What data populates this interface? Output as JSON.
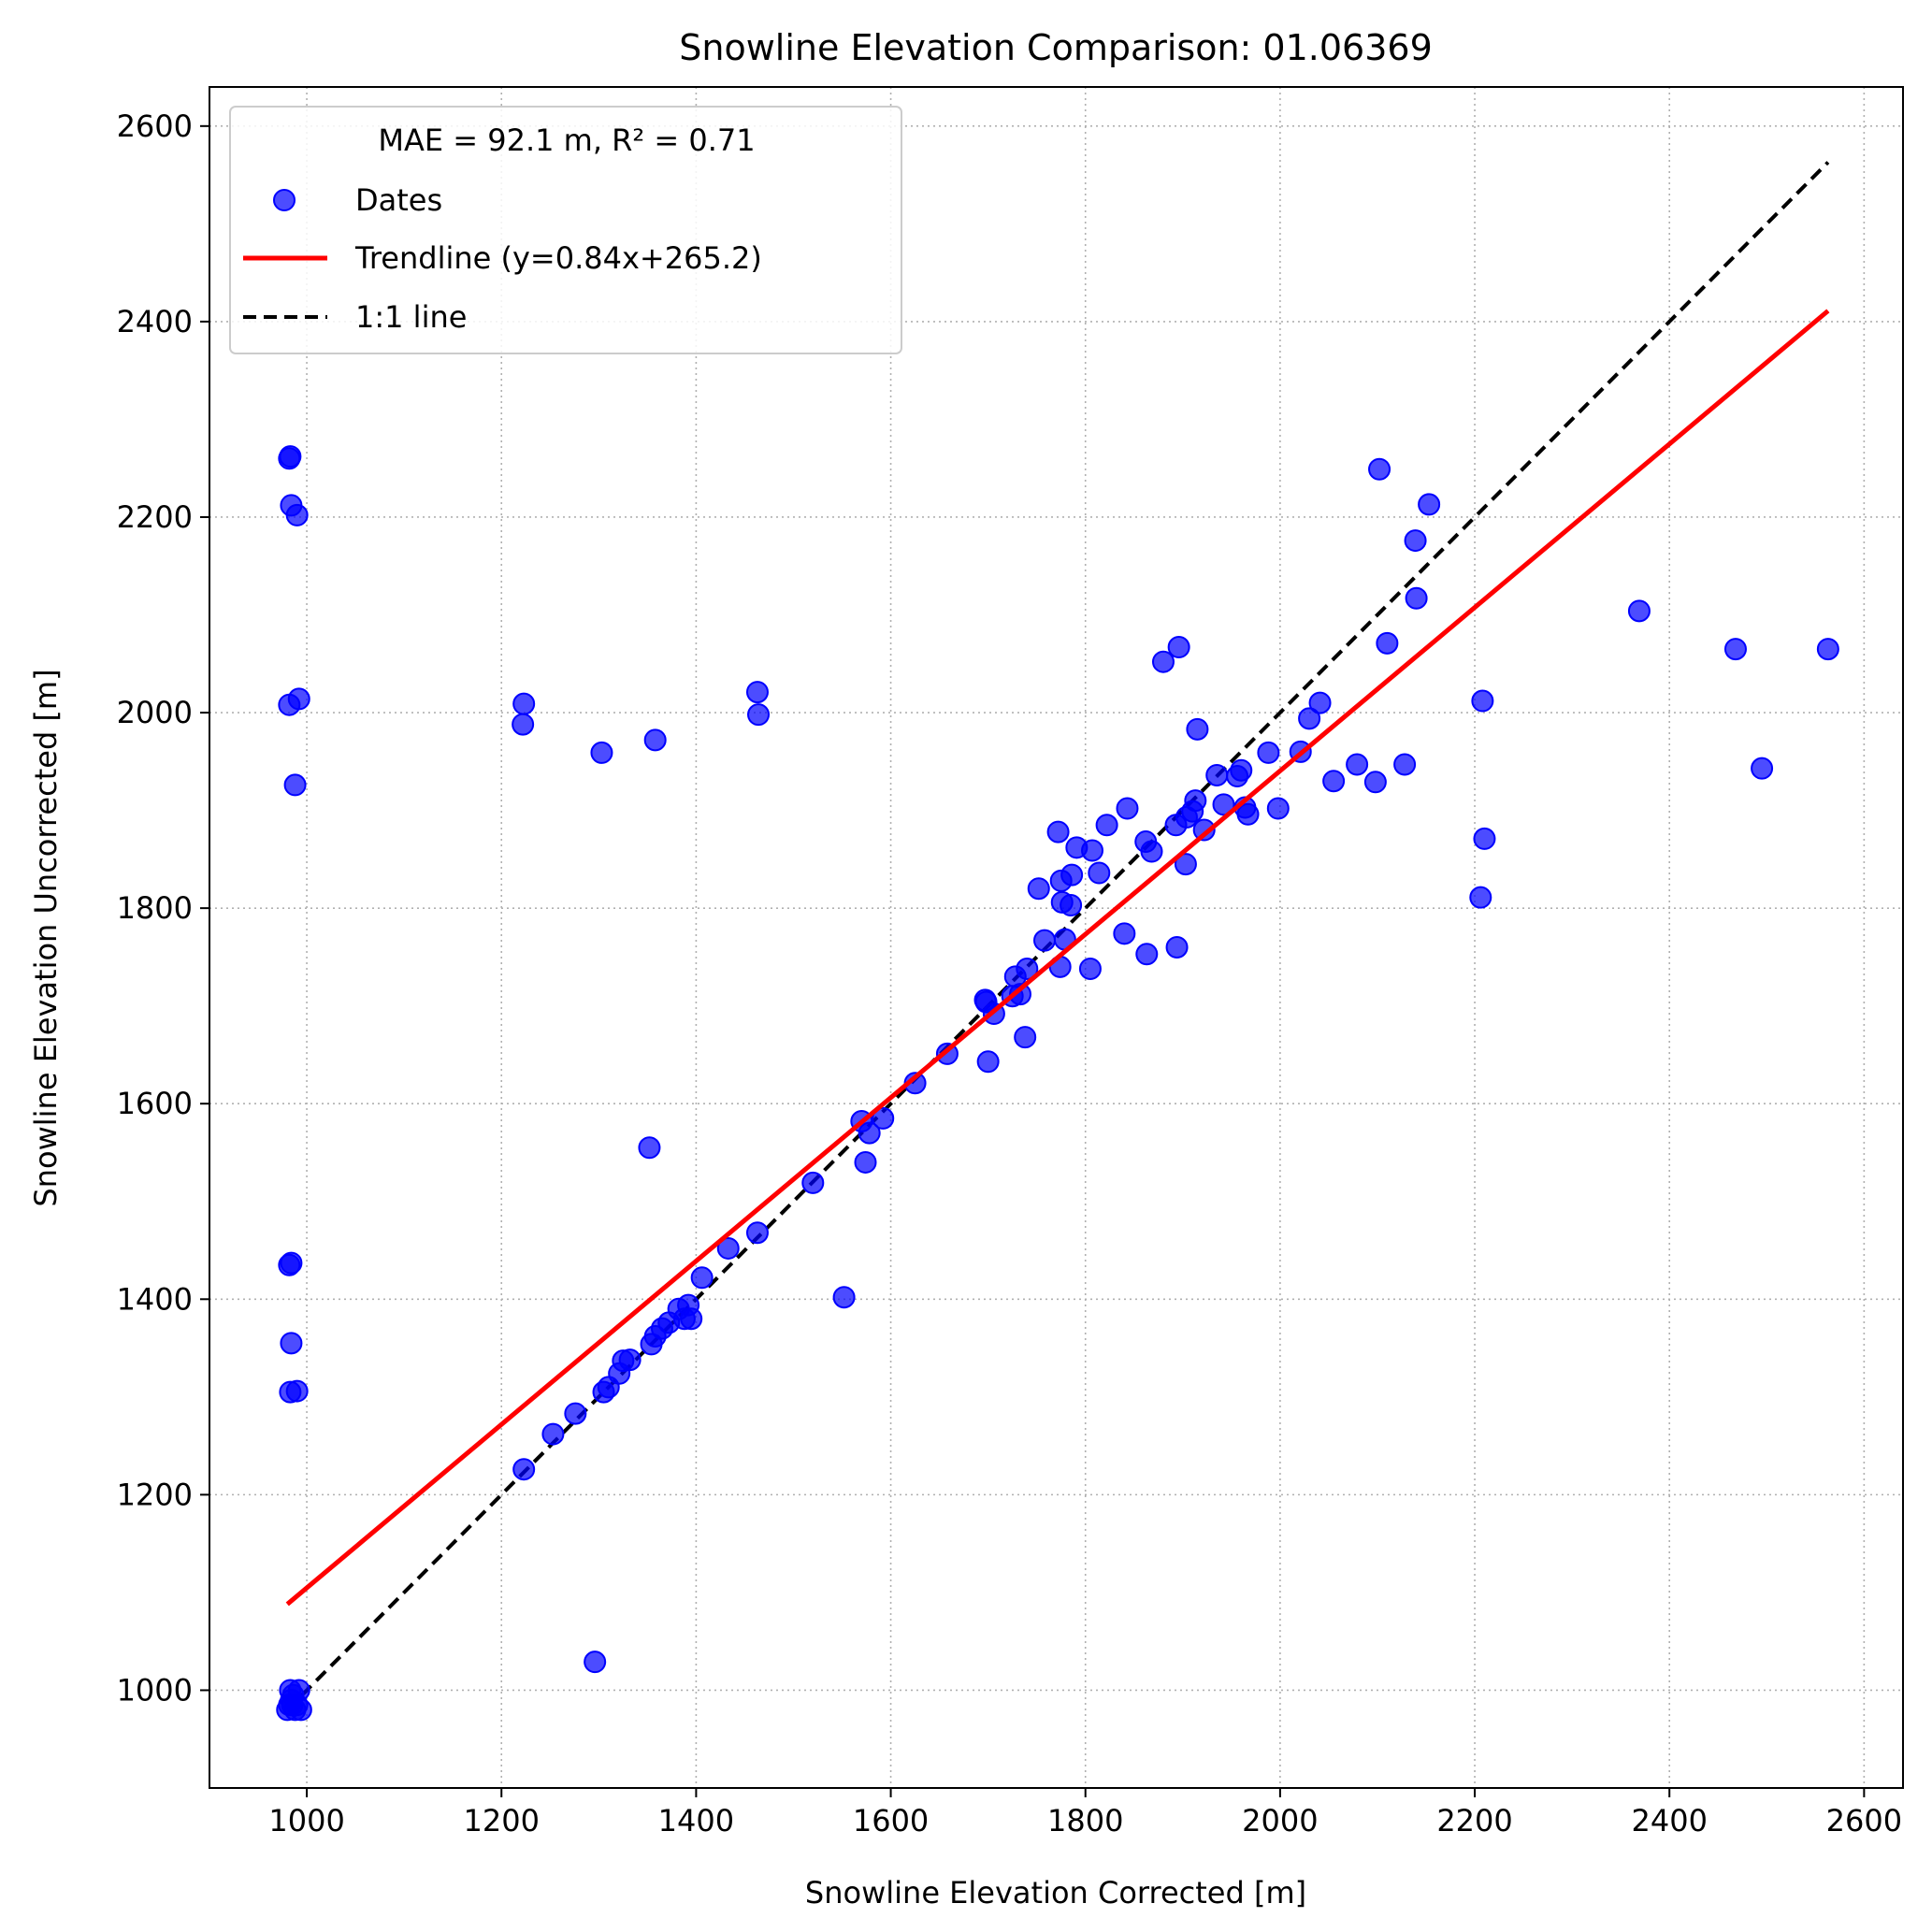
{
  "chart_data": {
    "type": "scatter",
    "title": "Snowline Elevation Comparison: 01.06369",
    "xlabel": "Snowline Elevation Corrected [m]",
    "ylabel": "Snowline Elevation Uncorrected [m]",
    "xlim": [
      900,
      2640
    ],
    "ylim": [
      900,
      2640
    ],
    "xticks": [
      1000,
      1200,
      1400,
      1600,
      1800,
      2000,
      2200,
      2400,
      2600
    ],
    "yticks": [
      1000,
      1200,
      1400,
      1600,
      1800,
      2000,
      2200,
      2400,
      2600
    ],
    "grid": true,
    "legend_position": "top-left",
    "legend_title": "MAE = 92.1 m,  R² = 0.71",
    "colors": {
      "points": "#0000ff",
      "trendline": "#ff0000",
      "identity": "#000000",
      "grid": "#b0b0b0"
    },
    "series": [
      {
        "name": "Dates",
        "kind": "scatter",
        "points": [
          [
            980,
            980
          ],
          [
            982,
            985
          ],
          [
            984,
            990
          ],
          [
            986,
            995
          ],
          [
            983,
            1000
          ],
          [
            985,
            985
          ],
          [
            988,
            980
          ],
          [
            990,
            985
          ],
          [
            992,
            1000
          ],
          [
            994,
            980
          ],
          [
            982,
            2260
          ],
          [
            983,
            2262
          ],
          [
            984,
            2212
          ],
          [
            990,
            2202
          ],
          [
            982,
            2008
          ],
          [
            992,
            2014
          ],
          [
            988,
            1926
          ],
          [
            982,
            1435
          ],
          [
            984,
            1437
          ],
          [
            984,
            1355
          ],
          [
            983,
            1305
          ],
          [
            990,
            1306
          ],
          [
            1223,
            2009
          ],
          [
            1222,
            1988
          ],
          [
            1303,
            1959
          ],
          [
            1358,
            1972
          ],
          [
            1463,
            2021
          ],
          [
            1464,
            1998
          ],
          [
            1352,
            1555
          ],
          [
            1552,
            1402
          ],
          [
            1296,
            1029
          ],
          [
            1223,
            1226
          ],
          [
            1253,
            1262
          ],
          [
            1276,
            1283
          ],
          [
            1305,
            1305
          ],
          [
            1310,
            1310
          ],
          [
            1321,
            1324
          ],
          [
            1325,
            1337
          ],
          [
            1332,
            1338
          ],
          [
            1354,
            1354
          ],
          [
            1358,
            1362
          ],
          [
            1365,
            1370
          ],
          [
            1372,
            1376
          ],
          [
            1382,
            1390
          ],
          [
            1388,
            1380
          ],
          [
            1392,
            1394
          ],
          [
            1395,
            1380
          ],
          [
            1406,
            1422
          ],
          [
            1433,
            1452
          ],
          [
            1463,
            1468
          ],
          [
            1520,
            1519
          ],
          [
            1570,
            1582
          ],
          [
            1574,
            1540
          ],
          [
            1578,
            1570
          ],
          [
            1592,
            1585
          ],
          [
            1625,
            1621
          ],
          [
            1658,
            1651
          ],
          [
            1697,
            1706
          ],
          [
            1698,
            1704
          ],
          [
            1700,
            1643
          ],
          [
            1706,
            1692
          ],
          [
            1725,
            1710
          ],
          [
            1728,
            1730
          ],
          [
            1733,
            1712
          ],
          [
            1738,
            1668
          ],
          [
            1740,
            1738
          ],
          [
            1752,
            1820
          ],
          [
            1758,
            1767
          ],
          [
            1772,
            1878
          ],
          [
            1774,
            1740
          ],
          [
            1775,
            1828
          ],
          [
            1776,
            1806
          ],
          [
            1779,
            1768
          ],
          [
            1785,
            1803
          ],
          [
            1786,
            1834
          ],
          [
            1791,
            1862
          ],
          [
            1805,
            1738
          ],
          [
            1807,
            1859
          ],
          [
            1814,
            1836
          ],
          [
            1822,
            1885
          ],
          [
            1840,
            1774
          ],
          [
            1843,
            1902
          ],
          [
            1862,
            1868
          ],
          [
            1863,
            1753
          ],
          [
            1868,
            1858
          ],
          [
            1880,
            2052
          ],
          [
            1893,
            1885
          ],
          [
            1894,
            1760
          ],
          [
            1896,
            2067
          ],
          [
            1903,
            1845
          ],
          [
            1904,
            1893
          ],
          [
            1910,
            1899
          ],
          [
            1913,
            1910
          ],
          [
            1915,
            1983
          ],
          [
            1922,
            1880
          ],
          [
            1935,
            1936
          ],
          [
            1942,
            1906
          ],
          [
            1956,
            1935
          ],
          [
            1960,
            1941
          ],
          [
            1964,
            1903
          ],
          [
            1967,
            1896
          ],
          [
            1988,
            1959
          ],
          [
            1998,
            1902
          ],
          [
            2021,
            1960
          ],
          [
            2030,
            1994
          ],
          [
            2041,
            2010
          ],
          [
            2055,
            1930
          ],
          [
            2079,
            1947
          ],
          [
            2098,
            1929
          ],
          [
            2102,
            2249
          ],
          [
            2110,
            2071
          ],
          [
            2128,
            1947
          ],
          [
            2139,
            2176
          ],
          [
            2140,
            2117
          ],
          [
            2153,
            2213
          ],
          [
            2206,
            1811
          ],
          [
            2208,
            2012
          ],
          [
            2210,
            1871
          ],
          [
            2369,
            2104
          ],
          [
            2468,
            2065
          ],
          [
            2495,
            1943
          ],
          [
            2563,
            2065
          ]
        ]
      },
      {
        "name": "Trendline (y=0.84x+265.2)",
        "kind": "line",
        "x": [
          980,
          2563
        ],
        "y": [
          1088,
          2411
        ]
      },
      {
        "name": "1:1 line",
        "kind": "dashed-line",
        "x": [
          980,
          2563
        ],
        "y": [
          980,
          2563
        ]
      }
    ]
  }
}
